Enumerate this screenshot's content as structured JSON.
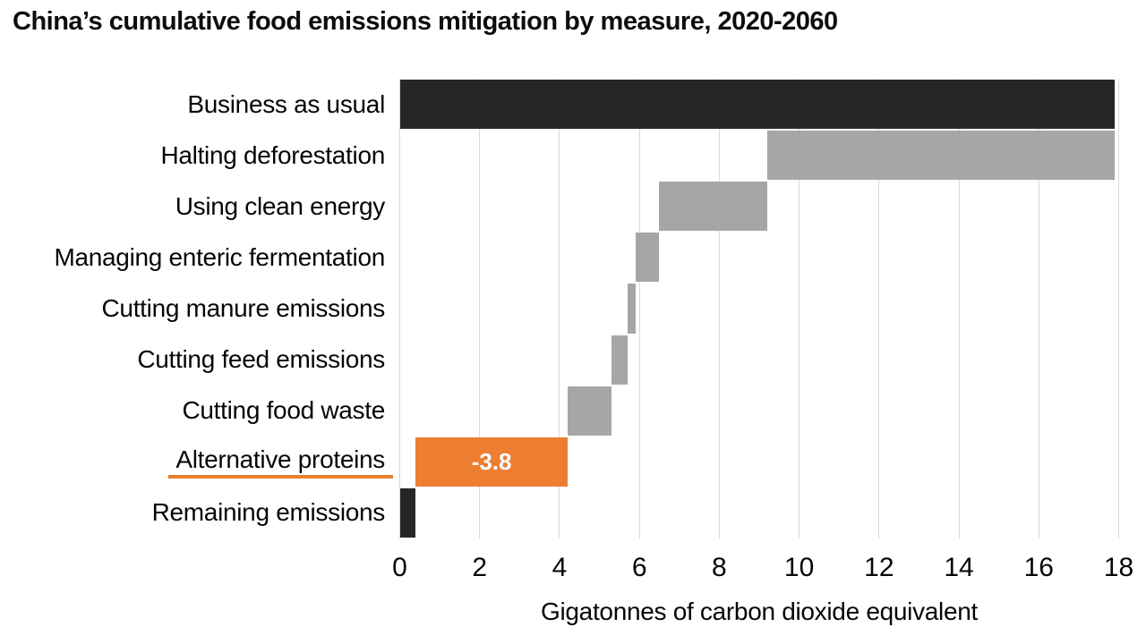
{
  "title": "China’s cumulative food emissions mitigation by measure, 2020-2060",
  "colors": {
    "dark": "#262626",
    "gray": "#a6a6a6",
    "orange": "#ed7d31",
    "gridline": "#d9d9d9",
    "highlight_underline": "#e8802f",
    "bar_label_text": "#ffffff"
  },
  "chart_data": {
    "type": "bar",
    "subtype": "horizontal-waterfall",
    "title": "China’s cumulative food emissions mitigation by measure, 2020-2060",
    "xlabel": "Gigatonnes of carbon dioxide equivalent",
    "xlim": [
      0,
      18
    ],
    "xticks": [
      0,
      2,
      4,
      6,
      8,
      10,
      12,
      14,
      16,
      18
    ],
    "grid": "vertical",
    "legend": "none",
    "categories": [
      "Business as usual",
      "Halting deforestation",
      "Using clean energy",
      "Managing enteric fermentation",
      "Cutting manure emissions",
      "Cutting feed emissions",
      "Cutting food waste",
      "Alternative proteins",
      "Remaining emissions"
    ],
    "bars": [
      {
        "label": "Business as usual",
        "start": 0,
        "end": 17.9,
        "color": "dark",
        "data_label": "",
        "underline_category": false
      },
      {
        "label": "Halting deforestation",
        "start": 9.2,
        "end": 17.9,
        "color": "gray",
        "data_label": "",
        "underline_category": false
      },
      {
        "label": "Using clean energy",
        "start": 6.5,
        "end": 9.2,
        "color": "gray",
        "data_label": "",
        "underline_category": false
      },
      {
        "label": "Managing enteric fermentation",
        "start": 5.9,
        "end": 6.5,
        "color": "gray",
        "data_label": "",
        "underline_category": false
      },
      {
        "label": "Cutting manure emissions",
        "start": 5.7,
        "end": 5.9,
        "color": "gray",
        "data_label": "",
        "underline_category": false
      },
      {
        "label": "Cutting feed emissions",
        "start": 5.3,
        "end": 5.7,
        "color": "gray",
        "data_label": "",
        "underline_category": false
      },
      {
        "label": "Cutting food waste",
        "start": 4.2,
        "end": 5.3,
        "color": "gray",
        "data_label": "",
        "underline_category": false
      },
      {
        "label": "Alternative proteins",
        "start": 0.4,
        "end": 4.2,
        "color": "orange",
        "data_label": "-3.8",
        "underline_category": true
      },
      {
        "label": "Remaining emissions",
        "start": 0,
        "end": 0.4,
        "color": "dark",
        "data_label": "",
        "underline_category": false
      }
    ]
  }
}
